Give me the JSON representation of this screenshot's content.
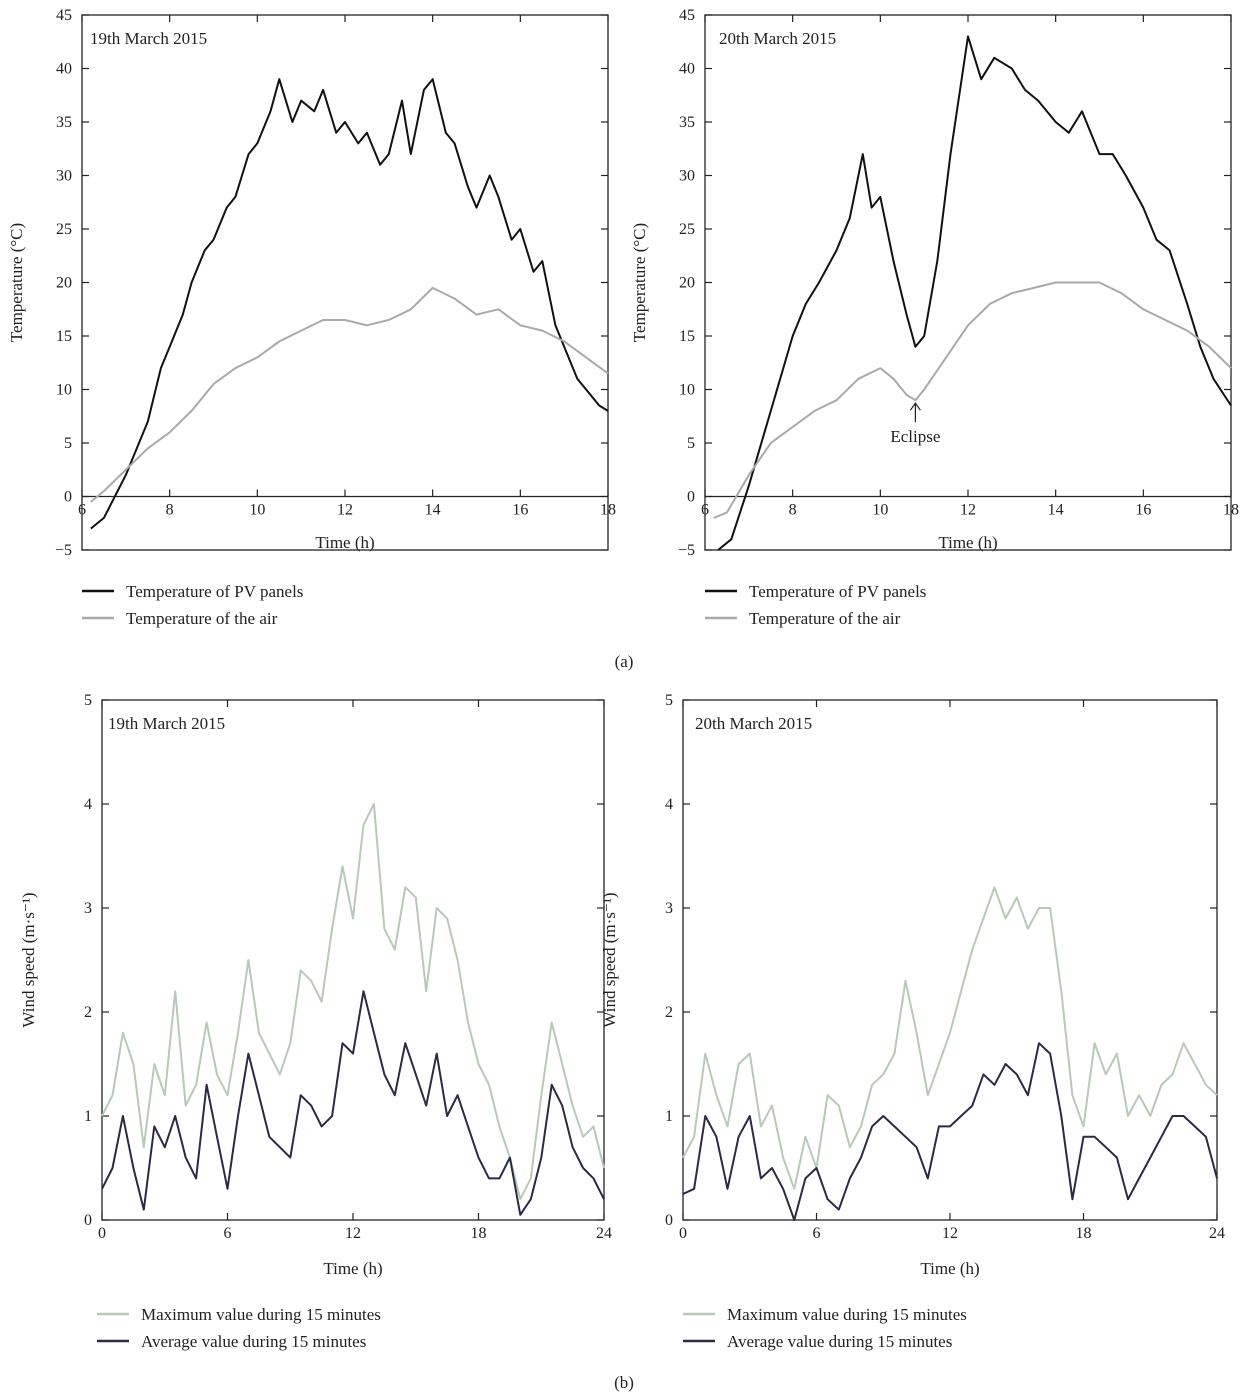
{
  "panel_labels": [
    "(a)",
    "(b)"
  ],
  "colors": {
    "pv_panels": "#111111",
    "air": "#a9a9a9",
    "wind_max": "#b7c9b7",
    "wind_avg": "#2b2a44",
    "axis": "#222222"
  },
  "chart_data": [
    {
      "type": "line",
      "title": "19th March 2015",
      "xlabel": "Time (h)",
      "ylabel": "Temperature (°C)",
      "xlim": [
        6,
        18
      ],
      "ylim": [
        -5,
        45
      ],
      "xticks": [
        6,
        8,
        10,
        12,
        14,
        16,
        18
      ],
      "yticks": [
        -5,
        0,
        5,
        10,
        15,
        20,
        25,
        30,
        35,
        40,
        45
      ],
      "grid": false,
      "legend_position": "below",
      "series": [
        {
          "name": "Temperature of PV panels",
          "color": "#111111",
          "x": [
            6.2,
            6.5,
            7.0,
            7.5,
            7.8,
            8.0,
            8.3,
            8.5,
            8.8,
            9.0,
            9.3,
            9.5,
            9.8,
            10.0,
            10.3,
            10.5,
            10.8,
            11.0,
            11.3,
            11.5,
            11.8,
            12.0,
            12.3,
            12.5,
            12.8,
            13.0,
            13.3,
            13.5,
            13.8,
            14.0,
            14.3,
            14.5,
            14.8,
            15.0,
            15.3,
            15.5,
            15.8,
            16.0,
            16.3,
            16.5,
            16.8,
            17.0,
            17.3,
            17.5,
            17.8,
            18.0
          ],
          "y": [
            -3,
            -2,
            2,
            7,
            12,
            14,
            17,
            20,
            23,
            24,
            27,
            28,
            32,
            33,
            36,
            39,
            35,
            37,
            36,
            38,
            34,
            35,
            33,
            34,
            31,
            32,
            37,
            32,
            38,
            39,
            34,
            33,
            29,
            27,
            30,
            28,
            24,
            25,
            21,
            22,
            16,
            14,
            11,
            10,
            8.5,
            8
          ]
        },
        {
          "name": "Temperature of the air",
          "color": "#a9a9a9",
          "x": [
            6.2,
            6.5,
            7.0,
            7.5,
            8.0,
            8.5,
            9.0,
            9.5,
            10.0,
            10.5,
            11.0,
            11.5,
            12.0,
            12.5,
            13.0,
            13.5,
            14.0,
            14.5,
            15.0,
            15.5,
            16.0,
            16.5,
            17.0,
            17.5,
            18.0
          ],
          "y": [
            -0.5,
            0.5,
            2.5,
            4.5,
            6.0,
            8.0,
            10.5,
            12.0,
            13.0,
            14.5,
            15.5,
            16.5,
            16.5,
            16.0,
            16.5,
            17.5,
            19.5,
            18.5,
            17.0,
            17.5,
            16.0,
            15.5,
            14.5,
            13.0,
            11.5
          ]
        }
      ]
    },
    {
      "type": "line",
      "title": "20th March 2015",
      "xlabel": "Time (h)",
      "ylabel": "Temperature (°C)",
      "xlim": [
        6,
        18
      ],
      "ylim": [
        -5,
        45
      ],
      "xticks": [
        6,
        8,
        10,
        12,
        14,
        16,
        18
      ],
      "yticks": [
        -5,
        0,
        5,
        10,
        15,
        20,
        25,
        30,
        35,
        40,
        45
      ],
      "grid": false,
      "legend_position": "below",
      "annotations": [
        {
          "text": "Eclipse",
          "x": 10.8,
          "y": 9.0
        }
      ],
      "series": [
        {
          "name": "Temperature of PV panels",
          "color": "#111111",
          "x": [
            6.3,
            6.6,
            7.0,
            7.5,
            8.0,
            8.3,
            8.6,
            9.0,
            9.3,
            9.6,
            9.8,
            10.0,
            10.3,
            10.6,
            10.8,
            11.0,
            11.3,
            11.6,
            12.0,
            12.3,
            12.6,
            13.0,
            13.3,
            13.6,
            14.0,
            14.3,
            14.6,
            15.0,
            15.3,
            15.6,
            16.0,
            16.3,
            16.6,
            17.0,
            17.3,
            17.6,
            18.0
          ],
          "y": [
            -5,
            -4,
            1,
            8,
            15,
            18,
            20,
            23,
            26,
            32,
            27,
            28,
            22,
            17,
            14,
            15,
            22,
            32,
            43,
            39,
            41,
            40,
            38,
            37,
            35,
            34,
            36,
            32,
            32,
            30,
            27,
            24,
            23,
            18,
            14,
            11,
            8.5
          ]
        },
        {
          "name": "Temperature of the air",
          "color": "#a9a9a9",
          "x": [
            6.2,
            6.5,
            7.0,
            7.5,
            8.0,
            8.5,
            9.0,
            9.5,
            10.0,
            10.3,
            10.6,
            10.8,
            11.0,
            11.5,
            12.0,
            12.5,
            13.0,
            13.5,
            14.0,
            14.5,
            15.0,
            15.5,
            16.0,
            16.5,
            17.0,
            17.5,
            18.0
          ],
          "y": [
            -2,
            -1.5,
            2,
            5,
            6.5,
            8,
            9,
            11,
            12,
            11,
            9.5,
            9,
            10,
            13,
            16,
            18,
            19,
            19.5,
            20,
            20,
            20,
            19,
            17.5,
            16.5,
            15.5,
            14,
            12
          ]
        }
      ]
    },
    {
      "type": "line",
      "title": "19th March 2015",
      "xlabel": "Time (h)",
      "ylabel": "Wind speed (m·s⁻¹)",
      "xlim": [
        0,
        24
      ],
      "ylim": [
        0,
        5
      ],
      "xticks": [
        0,
        6,
        12,
        18,
        24
      ],
      "yticks": [
        0,
        1,
        2,
        3,
        4,
        5
      ],
      "grid": false,
      "legend_position": "below",
      "series": [
        {
          "name": "Maximum value during 15 minutes",
          "color": "#b7c9b7",
          "x": [
            0,
            0.5,
            1,
            1.5,
            2,
            2.5,
            3,
            3.5,
            4,
            4.5,
            5,
            5.5,
            6,
            6.5,
            7,
            7.5,
            8,
            8.5,
            9,
            9.5,
            10,
            10.5,
            11,
            11.5,
            12,
            12.5,
            13,
            13.5,
            14,
            14.5,
            15,
            15.5,
            16,
            16.5,
            17,
            17.5,
            18,
            18.5,
            19,
            19.5,
            20,
            20.5,
            21,
            21.5,
            22,
            22.5,
            23,
            23.5,
            24
          ],
          "y": [
            1.0,
            1.2,
            1.8,
            1.5,
            0.7,
            1.5,
            1.2,
            2.2,
            1.1,
            1.3,
            1.9,
            1.4,
            1.2,
            1.8,
            2.5,
            1.8,
            1.6,
            1.4,
            1.7,
            2.4,
            2.3,
            2.1,
            2.8,
            3.4,
            2.9,
            3.8,
            4.0,
            2.8,
            2.6,
            3.2,
            3.1,
            2.2,
            3.0,
            2.9,
            2.5,
            1.9,
            1.5,
            1.3,
            0.9,
            0.6,
            0.2,
            0.4,
            1.2,
            1.9,
            1.5,
            1.1,
            0.8,
            0.9,
            0.5
          ]
        },
        {
          "name": "Average value during 15 minutes",
          "color": "#2b2a44",
          "x": [
            0,
            0.5,
            1,
            1.5,
            2,
            2.5,
            3,
            3.5,
            4,
            4.5,
            5,
            5.5,
            6,
            6.5,
            7,
            7.5,
            8,
            8.5,
            9,
            9.5,
            10,
            10.5,
            11,
            11.5,
            12,
            12.5,
            13,
            13.5,
            14,
            14.5,
            15,
            15.5,
            16,
            16.5,
            17,
            17.5,
            18,
            18.5,
            19,
            19.5,
            20,
            20.5,
            21,
            21.5,
            22,
            22.5,
            23,
            23.5,
            24
          ],
          "y": [
            0.3,
            0.5,
            1.0,
            0.5,
            0.1,
            0.9,
            0.7,
            1.0,
            0.6,
            0.4,
            1.3,
            0.8,
            0.3,
            1.0,
            1.6,
            1.2,
            0.8,
            0.7,
            0.6,
            1.2,
            1.1,
            0.9,
            1.0,
            1.7,
            1.6,
            2.2,
            1.8,
            1.4,
            1.2,
            1.7,
            1.4,
            1.1,
            1.6,
            1.0,
            1.2,
            0.9,
            0.6,
            0.4,
            0.4,
            0.6,
            0.05,
            0.2,
            0.6,
            1.3,
            1.1,
            0.7,
            0.5,
            0.4,
            0.2
          ]
        }
      ]
    },
    {
      "type": "line",
      "title": "20th March 2015",
      "xlabel": "Time (h)",
      "ylabel": "Wind speed (m·s⁻¹)",
      "xlim": [
        0,
        24
      ],
      "ylim": [
        0,
        5
      ],
      "xticks": [
        0,
        6,
        12,
        18,
        24
      ],
      "yticks": [
        0,
        1,
        2,
        3,
        4,
        5
      ],
      "grid": false,
      "legend_position": "below",
      "series": [
        {
          "name": "Maximum value during 15 minutes",
          "color": "#b7c9b7",
          "x": [
            0,
            0.5,
            1,
            1.5,
            2,
            2.5,
            3,
            3.5,
            4,
            4.5,
            5,
            5.5,
            6,
            6.5,
            7,
            7.5,
            8,
            8.5,
            9,
            9.5,
            10,
            10.5,
            11,
            11.5,
            12,
            12.5,
            13,
            13.5,
            14,
            14.5,
            15,
            15.5,
            16,
            16.5,
            17,
            17.5,
            18,
            18.5,
            19,
            19.5,
            20,
            20.5,
            21,
            21.5,
            22,
            22.5,
            23,
            23.5,
            24
          ],
          "y": [
            0.6,
            0.8,
            1.6,
            1.2,
            0.9,
            1.5,
            1.6,
            0.9,
            1.1,
            0.6,
            0.3,
            0.8,
            0.5,
            1.2,
            1.1,
            0.7,
            0.9,
            1.3,
            1.4,
            1.6,
            2.3,
            1.8,
            1.2,
            1.5,
            1.8,
            2.2,
            2.6,
            2.9,
            3.2,
            2.9,
            3.1,
            2.8,
            3.0,
            3.0,
            2.2,
            1.2,
            0.9,
            1.7,
            1.4,
            1.6,
            1.0,
            1.2,
            1.0,
            1.3,
            1.4,
            1.7,
            1.5,
            1.3,
            1.2
          ]
        },
        {
          "name": "Average value during 15 minutes",
          "color": "#2b2a44",
          "x": [
            0,
            0.5,
            1,
            1.5,
            2,
            2.5,
            3,
            3.5,
            4,
            4.5,
            5,
            5.5,
            6,
            6.5,
            7,
            7.5,
            8,
            8.5,
            9,
            9.5,
            10,
            10.5,
            11,
            11.5,
            12,
            12.5,
            13,
            13.5,
            14,
            14.5,
            15,
            15.5,
            16,
            16.5,
            17,
            17.5,
            18,
            18.5,
            19,
            19.5,
            20,
            20.5,
            21,
            21.5,
            22,
            22.5,
            23,
            23.5,
            24
          ],
          "y": [
            0.25,
            0.3,
            1.0,
            0.8,
            0.3,
            0.8,
            1.0,
            0.4,
            0.5,
            0.3,
            0.0,
            0.4,
            0.5,
            0.2,
            0.1,
            0.4,
            0.6,
            0.9,
            1.0,
            0.9,
            0.8,
            0.7,
            0.4,
            0.9,
            0.9,
            1.0,
            1.1,
            1.4,
            1.3,
            1.5,
            1.4,
            1.2,
            1.7,
            1.6,
            1.0,
            0.2,
            0.8,
            0.8,
            0.7,
            0.6,
            0.2,
            0.4,
            0.6,
            0.8,
            1.0,
            1.0,
            0.9,
            0.8,
            0.4
          ]
        }
      ]
    }
  ]
}
